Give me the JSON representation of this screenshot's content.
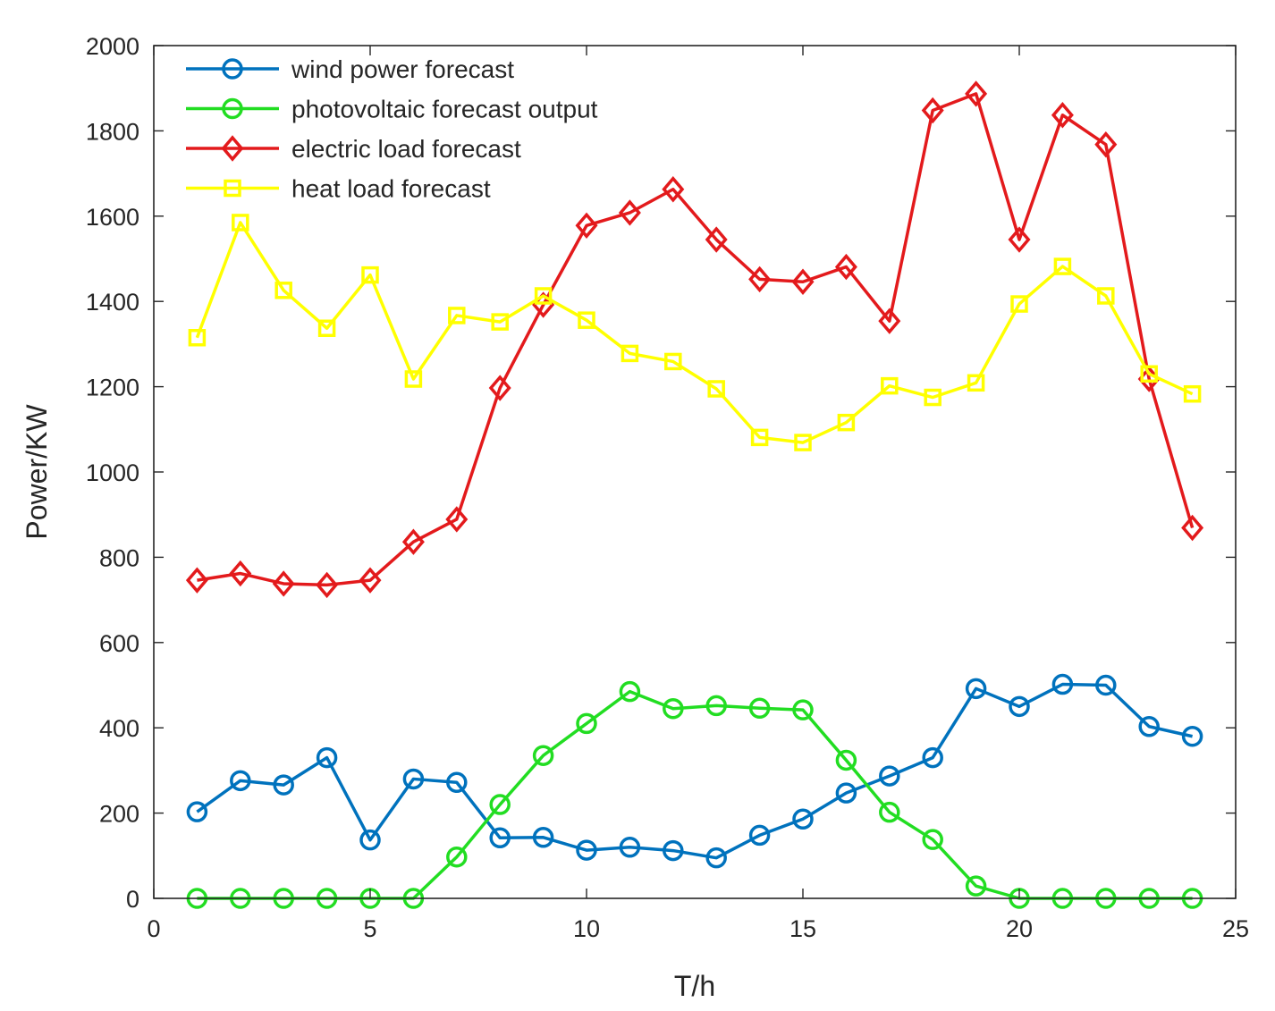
{
  "chart_data": {
    "type": "line",
    "title": "",
    "xlabel": "T/h",
    "ylabel": "Power/KW",
    "xlim": [
      0,
      25
    ],
    "ylim": [
      0,
      2000
    ],
    "xticks": [
      0,
      5,
      10,
      15,
      20,
      25
    ],
    "yticks": [
      0,
      200,
      400,
      600,
      800,
      1000,
      1200,
      1400,
      1600,
      1800,
      2000
    ],
    "grid": false,
    "legend_position": "top-left",
    "x": [
      1,
      2,
      3,
      4,
      5,
      6,
      7,
      8,
      9,
      10,
      11,
      12,
      13,
      14,
      15,
      16,
      17,
      18,
      19,
      20,
      21,
      22,
      23,
      24
    ],
    "series": [
      {
        "name": "wind power forecast",
        "color": "#0072BD",
        "marker": "circle",
        "values": [
          203,
          276,
          266,
          330,
          137,
          280,
          272,
          142,
          143,
          113,
          120,
          112,
          95,
          148,
          186,
          247,
          287,
          330,
          492,
          450,
          502,
          500,
          403,
          380
        ]
      },
      {
        "name": "photovoltaic forecast output",
        "color": "#22DD22",
        "marker": "circle",
        "values": [
          0,
          0,
          0,
          0,
          0,
          0,
          97,
          220,
          335,
          410,
          485,
          445,
          452,
          446,
          442,
          324,
          202,
          138,
          29,
          0,
          0,
          0,
          0,
          0
        ]
      },
      {
        "name": "electric load forecast",
        "color": "#E31A1C",
        "marker": "diamond",
        "values": [
          746,
          762,
          738,
          735,
          746,
          836,
          889,
          1197,
          1392,
          1578,
          1608,
          1663,
          1545,
          1452,
          1446,
          1481,
          1354,
          1848,
          1887,
          1545,
          1837,
          1768,
          1218,
          869
        ]
      },
      {
        "name": "heat load forecast",
        "color": "#FFFF00",
        "marker": "square",
        "values": [
          1315,
          1585,
          1426,
          1337,
          1462,
          1218,
          1367,
          1352,
          1413,
          1356,
          1278,
          1259,
          1195,
          1081,
          1069,
          1116,
          1202,
          1175,
          1209,
          1394,
          1482,
          1413,
          1230,
          1183
        ]
      }
    ]
  }
}
